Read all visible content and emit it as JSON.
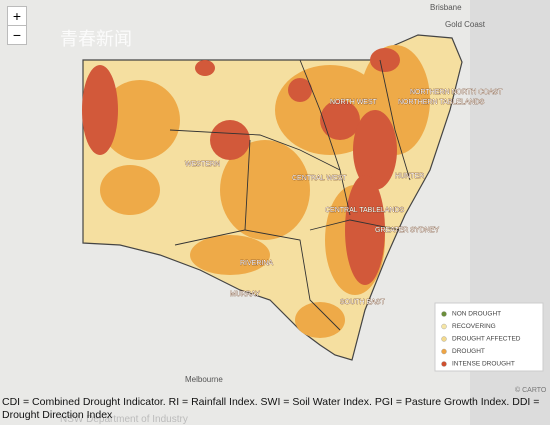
{
  "zoom": {
    "in": "+",
    "out": "−"
  },
  "watermark": "青春新闻",
  "map": {
    "cities": [
      "Brisbane",
      "Gold Coast",
      "Melbourne"
    ],
    "regions": [
      "NORTHERN NORTH COAST",
      "NORTHERN TABLELANDS",
      "NORTH WEST",
      "WESTERN",
      "CENTRAL WEST",
      "HUNTER",
      "CENTRAL TABLELANDS",
      "GREATER SYDNEY",
      "RIVERINA",
      "MURRAY",
      "SOUTH EAST"
    ],
    "attribution": "© CARTO"
  },
  "legend": {
    "items": [
      {
        "label": "NON DROUGHT",
        "color": "#6b8e3a"
      },
      {
        "label": "RECOVERING",
        "color": "#f6e6a6"
      },
      {
        "label": "DROUGHT AFFECTED",
        "color": "#f3d98c"
      },
      {
        "label": "DROUGHT",
        "color": "#eea443"
      },
      {
        "label": "INTENSE DROUGHT",
        "color": "#cf4f2e"
      }
    ]
  },
  "caption": "CDI = Combined Drought Indicator. RI = Rainfall Index. SWI = Soil Water Index. PGI = Pasture Growth Index. DDI = Drought Direction Index",
  "source": "NSW Department of Industry"
}
